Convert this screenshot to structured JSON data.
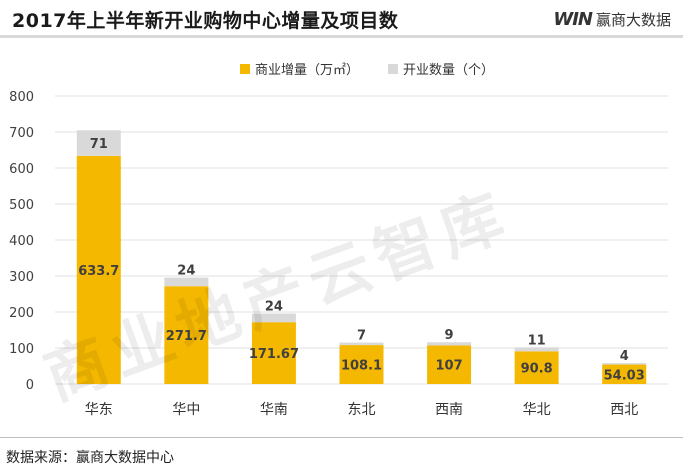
{
  "header": {
    "title": "2017年上半年新开业购物中心增量及项目数",
    "brand_logo": "WIN",
    "brand_name": "赢商大数据"
  },
  "watermark": "商业地产云智库",
  "source": "数据来源：赢商大数据中心",
  "colors": {
    "area_series": "#f5b800",
    "count_series": "#d9d9d9",
    "gridline": "#e0e0e0",
    "axis_text": "#404040"
  },
  "chart_data": {
    "type": "bar",
    "stacked": true,
    "categories": [
      "华东",
      "华中",
      "华南",
      "东北",
      "西南",
      "华北",
      "西北"
    ],
    "series": [
      {
        "name": "商业增量（万㎡）",
        "values": [
          633.7,
          271.7,
          171.67,
          108.1,
          107,
          90.8,
          54.03
        ]
      },
      {
        "name": "开业数量（个）",
        "values": [
          71,
          24,
          24,
          7,
          9,
          11,
          4
        ]
      }
    ],
    "ylim": [
      0,
      800
    ],
    "yticks": [
      0,
      100,
      200,
      300,
      400,
      500,
      600,
      700,
      800
    ],
    "grid": true,
    "legend_position": "top-center",
    "title": "",
    "xlabel": "",
    "ylabel": ""
  }
}
